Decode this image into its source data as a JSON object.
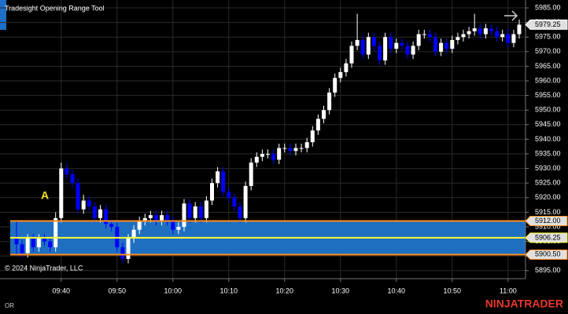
{
  "chart_data": {
    "type": "candlestick",
    "title": "Tradesight Opening Range Tool",
    "copyright": "© 2024 NinjaTrader, LLC",
    "footer_left": "OR",
    "brand": "NINJATRADER",
    "annotation": "A",
    "categories": [
      null,
      null,
      null,
      null,
      null,
      null,
      null,
      null,
      "09:40",
      null,
      null,
      null,
      null,
      null,
      null,
      null,
      null,
      null,
      "09:50",
      null,
      null,
      null,
      null,
      null,
      null,
      null,
      null,
      null,
      "10:00",
      null,
      null,
      null,
      null,
      null,
      null,
      null,
      null,
      null,
      "10:10",
      null,
      null,
      null,
      null,
      null,
      null,
      null,
      null,
      null,
      "10:20",
      null,
      null,
      null,
      null,
      null,
      null,
      null,
      null,
      null,
      "10:30",
      null,
      null,
      null,
      null,
      null,
      null,
      null,
      null,
      null,
      "10:40",
      null,
      null,
      null,
      null,
      null,
      null,
      null,
      null,
      null,
      "10:50",
      null,
      null,
      null,
      null,
      null,
      null,
      null,
      null,
      null,
      "11:00",
      null,
      null
    ],
    "open": [
      5906,
      5904,
      5901,
      5906,
      5903,
      5906,
      5905,
      5903,
      5913,
      5930,
      5928,
      5925,
      5916,
      5919,
      5917,
      5913,
      5916,
      5911,
      5910,
      5903,
      5899,
      5906,
      5909,
      5912,
      5913,
      5914,
      5912,
      5914,
      5912,
      5909,
      5910,
      5918,
      5913,
      5917,
      5913,
      5919,
      5925,
      5929,
      5922,
      5920,
      5917,
      5913,
      5924,
      5932,
      5934,
      5935,
      5935,
      5933,
      5937,
      5937,
      5936,
      5937,
      5937,
      5939,
      5943,
      5947,
      5950,
      5956,
      5961,
      5963,
      5966,
      5972,
      5974,
      5969,
      5975,
      5972,
      5967,
      5975,
      5971,
      5973,
      5972,
      5969,
      5972,
      5976,
      5976,
      5975,
      5970,
      5973,
      5971,
      5974,
      5975,
      5976,
      5977,
      5978,
      5976,
      5978,
      5977,
      5975,
      5976,
      5973,
      5976
    ],
    "high": [
      5912,
      5905.5,
      5907.5,
      5907.5,
      5907.5,
      5907.5,
      5906.5,
      5915,
      5932,
      5931.5,
      5929.5,
      5926.5,
      5921,
      5920.5,
      5918.5,
      5917.5,
      5917.5,
      5912.5,
      5911.5,
      5904.5,
      5907.5,
      5910.5,
      5913.5,
      5914.5,
      5915.5,
      5915.5,
      5915.5,
      5915.5,
      5913.5,
      5911.5,
      5919.5,
      5919.5,
      5918.5,
      5918.5,
      5920.5,
      5926.5,
      5930.5,
      5930.5,
      5923.5,
      5921.5,
      5918.5,
      5925.5,
      5933.5,
      5935.5,
      5936.5,
      5936.5,
      5936.5,
      5938.5,
      5938.5,
      5938.5,
      5938.5,
      5938.5,
      5940.5,
      5944.5,
      5948.5,
      5951.5,
      5957.5,
      5962.5,
      5964.5,
      5967.5,
      5973.5,
      5983,
      5975.5,
      5976.5,
      5976.5,
      5973.5,
      5976.5,
      5976.5,
      5974.5,
      5974.5,
      5973.5,
      5973.5,
      5977.5,
      5977.5,
      5977.5,
      5976.5,
      5974.5,
      5974.5,
      5975.5,
      5976.5,
      5977.5,
      5978.5,
      5983,
      5979.5,
      5979.5,
      5979.5,
      5978.5,
      5977.5,
      5977.5,
      5977.5,
      5981
    ],
    "low": [
      5900,
      5899.5,
      5899.5,
      5901.5,
      5901.5,
      5903.5,
      5901.5,
      5901.5,
      5911.5,
      5926.5,
      5923.5,
      5914.5,
      5914.5,
      5915.5,
      5911.5,
      5911.5,
      5909.5,
      5908.5,
      5901.5,
      5897.5,
      5897.5,
      5904.5,
      5907.5,
      5910.5,
      5911.5,
      5910.5,
      5910.5,
      5910.5,
      5907.5,
      5907.5,
      5908.5,
      5911.5,
      5911.5,
      5911.5,
      5911.5,
      5917.5,
      5923.5,
      5920.5,
      5918.5,
      5915.5,
      5911.5,
      5911.5,
      5922.5,
      5930.5,
      5932.5,
      5933.5,
      5931.5,
      5931.5,
      5935.5,
      5934.5,
      5934.5,
      5935.5,
      5935.5,
      5937.5,
      5941.5,
      5945.5,
      5948.5,
      5954.5,
      5959.5,
      5961.5,
      5964.5,
      5970.5,
      5967.5,
      5967.5,
      5970.5,
      5965.5,
      5965.5,
      5969.5,
      5969.5,
      5970.5,
      5967.5,
      5967.5,
      5970.5,
      5974.5,
      5973.5,
      5968.5,
      5968.5,
      5969.5,
      5969.5,
      5972.5,
      5973.5,
      5974.5,
      5975.5,
      5974.5,
      5974.5,
      5975.5,
      5973.5,
      5973.5,
      5971.5,
      5971.5,
      5974.5
    ],
    "close": [
      5904,
      5901,
      5906,
      5903,
      5906,
      5905,
      5903,
      5913,
      5930,
      5928,
      5925,
      5916,
      5919,
      5917,
      5913,
      5916,
      5911,
      5910,
      5903,
      5899,
      5906,
      5909,
      5912,
      5913,
      5914,
      5912,
      5914,
      5912,
      5909,
      5910,
      5918,
      5913,
      5917,
      5913,
      5919,
      5925,
      5929,
      5922,
      5920,
      5917,
      5913,
      5924,
      5932,
      5934,
      5935,
      5935,
      5933,
      5937,
      5937,
      5936,
      5937,
      5937,
      5939,
      5943,
      5947,
      5950,
      5956,
      5961,
      5963,
      5966,
      5972,
      5974,
      5969,
      5975,
      5972,
      5967,
      5975,
      5971,
      5973,
      5972,
      5969,
      5972,
      5976,
      5976,
      5975,
      5970,
      5973,
      5971,
      5974,
      5975,
      5976,
      5977,
      5978,
      5976,
      5978,
      5977,
      5975,
      5976,
      5973,
      5976,
      5979.25
    ],
    "up_color": "#ffffff",
    "down_color": "#0000ff",
    "ylim": [
      5892.25,
      5987.7
    ],
    "yticks": [
      {
        "value": 5895,
        "label": "5895.00"
      },
      {
        "value": 5900,
        "label": "5900.00"
      },
      {
        "value": 5905,
        "label": "5905.00"
      },
      {
        "value": 5910,
        "label": "5910.00"
      },
      {
        "value": 5915,
        "label": "5915.00"
      },
      {
        "value": 5920,
        "label": "5920.00"
      },
      {
        "value": 5925,
        "label": "5925.00"
      },
      {
        "value": 5930,
        "label": "5930.00"
      },
      {
        "value": 5935,
        "label": "5935.00"
      },
      {
        "value": 5940,
        "label": "5940.00"
      },
      {
        "value": 5945,
        "label": "5945.00"
      },
      {
        "value": 5950,
        "label": "5950.00"
      },
      {
        "value": 5955,
        "label": "5955.00"
      },
      {
        "value": 5960,
        "label": "5960.00"
      },
      {
        "value": 5965,
        "label": "5965.00"
      },
      {
        "value": 5970,
        "label": "5970.00"
      },
      {
        "value": 5975,
        "label": "5975.00"
      },
      {
        "value": 5980,
        "label": "5980.00"
      },
      {
        "value": 5985,
        "label": "5985.00"
      }
    ],
    "grid": true,
    "opening_range": {
      "high": {
        "value": 5912,
        "label": "5912.00"
      },
      "mid": {
        "value": 5906.25,
        "label": "5906.25"
      },
      "low": {
        "value": 5900.5,
        "label": "5900.50"
      },
      "fill": "#1f6fc0",
      "edge": "#ff8c1a",
      "mid_color": "#ffff33"
    },
    "last_price": {
      "value": 5979.25,
      "label": "5979.25"
    }
  }
}
